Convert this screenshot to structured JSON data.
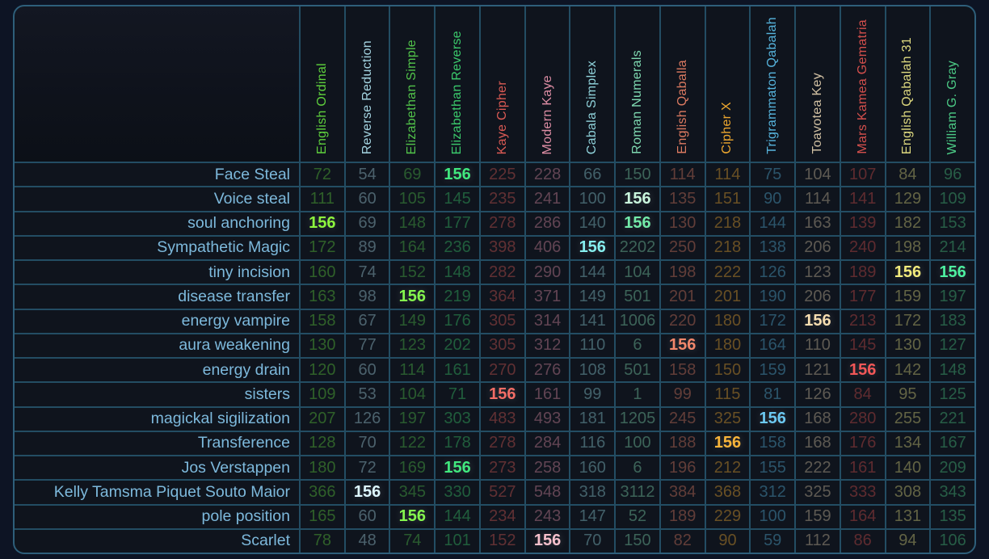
{
  "app": {
    "name": "gematria-comparison-table",
    "background": "#0d1424",
    "grid_line_color": "#234d63",
    "border_color": "#2e5f7a",
    "cell_background": "#0f141d",
    "phrase_text_color": "#7db9dc",
    "match_value": "156"
  },
  "table": {
    "columns": [
      {
        "label": "English Ordinal",
        "color": "#5fd13d"
      },
      {
        "label": "Reverse Reduction",
        "color": "#a5d5e2"
      },
      {
        "label": "Elizabethan Simple",
        "color": "#52c44a"
      },
      {
        "label": "Elizabethan Reverse",
        "color": "#3bca6c"
      },
      {
        "label": "Kaye Cipher",
        "color": "#da5a54"
      },
      {
        "label": "Modern Kaye",
        "color": "#dd8da4"
      },
      {
        "label": "Cabala Simplex",
        "color": "#8fd2da"
      },
      {
        "label": "Roman Numerals",
        "color": "#7fd9b1"
      },
      {
        "label": "English Qaballa",
        "color": "#dc7a61"
      },
      {
        "label": "Cipher X",
        "color": "#eda72f"
      },
      {
        "label": "Trigrammaton Qabalah",
        "color": "#56b4dd"
      },
      {
        "label": "Toavotea Key",
        "color": "#d2c1a3"
      },
      {
        "label": "Mars Kamea Gematria",
        "color": "#d44f4c"
      },
      {
        "label": "English Qabalah 31",
        "color": "#ded97f"
      },
      {
        "label": "William G. Gray",
        "color": "#4bca85"
      }
    ],
    "rows": [
      {
        "label": "Face Steal",
        "values": [
          72,
          54,
          69,
          156,
          225,
          228,
          66,
          150,
          114,
          114,
          75,
          104,
          107,
          84,
          96
        ],
        "highlights": {
          "3": "#41e87e"
        }
      },
      {
        "label": "Voice steal",
        "values": [
          111,
          60,
          105,
          145,
          235,
          241,
          100,
          156,
          135,
          151,
          90,
          114,
          141,
          129,
          109
        ],
        "highlights": {
          "7": "#c9f6dd"
        }
      },
      {
        "label": "soul anchoring",
        "values": [
          156,
          69,
          148,
          177,
          278,
          286,
          140,
          156,
          130,
          218,
          144,
          163,
          139,
          182,
          153
        ],
        "highlights": {
          "0": "#8df53e",
          "7": "#73eaa9"
        }
      },
      {
        "label": "Sympathetic Magic",
        "values": [
          172,
          89,
          164,
          236,
          398,
          406,
          156,
          2202,
          250,
          218,
          138,
          206,
          240,
          198,
          214
        ],
        "highlights": {
          "6": "#86efef"
        }
      },
      {
        "label": "tiny incision",
        "values": [
          160,
          74,
          152,
          148,
          282,
          290,
          144,
          104,
          198,
          222,
          126,
          123,
          189,
          156,
          156
        ],
        "highlights": {
          "13": "#f2ea7c",
          "14": "#4df0a0"
        }
      },
      {
        "label": "disease transfer",
        "values": [
          163,
          98,
          156,
          219,
          364,
          371,
          149,
          501,
          201,
          201,
          190,
          206,
          177,
          159,
          197
        ],
        "highlights": {
          "2": "#84f64e"
        }
      },
      {
        "label": "energy vampire",
        "values": [
          158,
          67,
          149,
          176,
          305,
          314,
          141,
          1006,
          220,
          180,
          172,
          156,
          213,
          172,
          183
        ],
        "highlights": {
          "11": "#f6ddb0"
        }
      },
      {
        "label": "aura weakening",
        "values": [
          130,
          77,
          123,
          202,
          305,
          312,
          110,
          6,
          156,
          180,
          164,
          110,
          145,
          130,
          127
        ],
        "highlights": {
          "8": "#f2876b"
        }
      },
      {
        "label": "energy drain",
        "values": [
          120,
          60,
          114,
          161,
          270,
          276,
          108,
          501,
          158,
          150,
          159,
          121,
          156,
          142,
          148
        ],
        "highlights": {
          "12": "#f25757"
        }
      },
      {
        "label": "sisters",
        "values": [
          109,
          53,
          104,
          71,
          156,
          161,
          99,
          1,
          99,
          115,
          81,
          126,
          84,
          95,
          125
        ],
        "highlights": {
          "4": "#f26d66"
        }
      },
      {
        "label": "magickal sigilization",
        "values": [
          207,
          126,
          197,
          303,
          483,
          493,
          181,
          1205,
          245,
          325,
          156,
          168,
          280,
          255,
          221
        ],
        "highlights": {
          "10": "#6cc9f2"
        }
      },
      {
        "label": "Transference",
        "values": [
          128,
          70,
          122,
          178,
          278,
          284,
          116,
          100,
          188,
          156,
          158,
          168,
          176,
          134,
          167
        ],
        "highlights": {
          "9": "#f8b43a"
        }
      },
      {
        "label": "Jos Verstappen",
        "values": [
          180,
          72,
          169,
          156,
          273,
          258,
          160,
          6,
          196,
          212,
          155,
          222,
          161,
          140,
          209
        ],
        "highlights": {
          "3": "#41e87e"
        }
      },
      {
        "label": "Kelly Tamsma Piquet Souto Maior",
        "values": [
          366,
          156,
          345,
          330,
          527,
          548,
          318,
          3112,
          384,
          368,
          312,
          325,
          333,
          308,
          343
        ],
        "highlights": {
          "1": "#def7ff"
        }
      },
      {
        "label": "pole position",
        "values": [
          165,
          60,
          156,
          144,
          234,
          243,
          147,
          52,
          189,
          229,
          100,
          159,
          164,
          131,
          135
        ],
        "highlights": {
          "2": "#84f64e"
        }
      },
      {
        "label": "Scarlet",
        "values": [
          78,
          48,
          74,
          101,
          152,
          156,
          70,
          150,
          82,
          90,
          59,
          112,
          86,
          94,
          106
        ],
        "highlights": {
          "5": "#f6c0cc"
        }
      }
    ]
  }
}
